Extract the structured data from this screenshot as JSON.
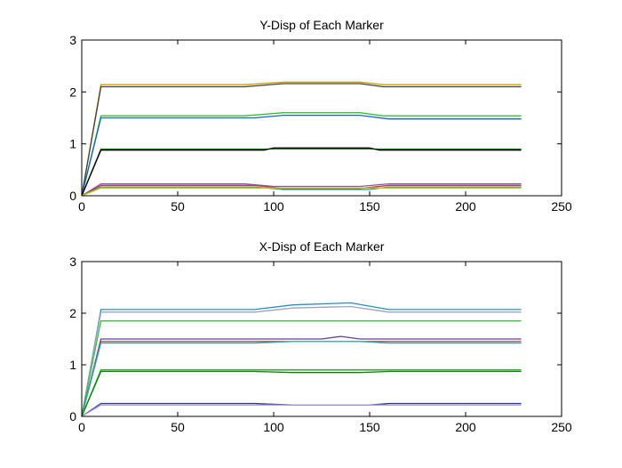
{
  "chart_data": [
    {
      "type": "line",
      "title": "Y-Disp of Each Marker",
      "xlabel": "",
      "ylabel": "",
      "xlim": [
        0,
        250
      ],
      "ylim": [
        0,
        3
      ],
      "xticks": [
        0,
        50,
        100,
        150,
        200,
        250
      ],
      "yticks": [
        0,
        1,
        2,
        3
      ],
      "grid": false,
      "series": [
        {
          "color": "#c8a000",
          "points": [
            [
              0,
              0
            ],
            [
              10,
              2.14
            ],
            [
              85,
              2.14
            ],
            [
              105,
              2.19
            ],
            [
              145,
              2.19
            ],
            [
              157,
              2.14
            ],
            [
              229,
              2.14
            ]
          ]
        },
        {
          "color": "#404040",
          "points": [
            [
              0,
              0
            ],
            [
              10,
              2.1
            ],
            [
              85,
              2.1
            ],
            [
              105,
              2.16
            ],
            [
              145,
              2.16
            ],
            [
              157,
              2.1
            ],
            [
              229,
              2.1
            ]
          ]
        },
        {
          "color": "#30c030",
          "points": [
            [
              0,
              0
            ],
            [
              10,
              1.54
            ],
            [
              85,
              1.54
            ],
            [
              105,
              1.6
            ],
            [
              145,
              1.6
            ],
            [
              157,
              1.54
            ],
            [
              229,
              1.54
            ]
          ]
        },
        {
          "color": "#2060c0",
          "points": [
            [
              0,
              0
            ],
            [
              10,
              1.5
            ],
            [
              90,
              1.5
            ],
            [
              105,
              1.55
            ],
            [
              145,
              1.55
            ],
            [
              160,
              1.48
            ],
            [
              229,
              1.48
            ]
          ]
        },
        {
          "color": "#208020",
          "points": [
            [
              0,
              0
            ],
            [
              10,
              0.9
            ],
            [
              229,
              0.9
            ]
          ]
        },
        {
          "color": "#000000",
          "points": [
            [
              0,
              0
            ],
            [
              10,
              0.88
            ],
            [
              95,
              0.88
            ],
            [
              100,
              0.92
            ],
            [
              150,
              0.92
            ],
            [
              155,
              0.88
            ],
            [
              229,
              0.88
            ]
          ]
        },
        {
          "color": "#9050c0",
          "points": [
            [
              0,
              0
            ],
            [
              10,
              0.23
            ],
            [
              85,
              0.23
            ],
            [
              100,
              0.18
            ],
            [
              145,
              0.18
            ],
            [
              160,
              0.23
            ],
            [
              229,
              0.23
            ]
          ]
        },
        {
          "color": "#c04040",
          "points": [
            [
              0,
              0
            ],
            [
              10,
              0.2
            ],
            [
              90,
              0.2
            ],
            [
              105,
              0.14
            ],
            [
              145,
              0.14
            ],
            [
              160,
              0.2
            ],
            [
              229,
              0.2
            ]
          ]
        },
        {
          "color": "#20a0a0",
          "points": [
            [
              0,
              0
            ],
            [
              10,
              0.17
            ],
            [
              90,
              0.17
            ],
            [
              105,
              0.12
            ],
            [
              150,
              0.12
            ],
            [
              160,
              0.17
            ],
            [
              229,
              0.17
            ]
          ]
        },
        {
          "color": "#c0c000",
          "points": [
            [
              0,
              0
            ],
            [
              10,
              0.15
            ],
            [
              229,
              0.15
            ]
          ]
        }
      ]
    },
    {
      "type": "line",
      "title": "X-Disp of Each Marker",
      "xlabel": "",
      "ylabel": "",
      "xlim": [
        0,
        250
      ],
      "ylim": [
        0,
        3
      ],
      "xticks": [
        0,
        50,
        100,
        150,
        200,
        250
      ],
      "yticks": [
        0,
        1,
        2,
        3
      ],
      "grid": false,
      "series": [
        {
          "color": "#2090c0",
          "points": [
            [
              0,
              0
            ],
            [
              10,
              2.07
            ],
            [
              90,
              2.07
            ],
            [
              110,
              2.16
            ],
            [
              140,
              2.2
            ],
            [
              160,
              2.07
            ],
            [
              229,
              2.07
            ]
          ]
        },
        {
          "color": "#a0a0c0",
          "points": [
            [
              0,
              0
            ],
            [
              10,
              2.02
            ],
            [
              90,
              2.02
            ],
            [
              110,
              2.1
            ],
            [
              140,
              2.13
            ],
            [
              160,
              2.02
            ],
            [
              229,
              2.02
            ]
          ]
        },
        {
          "color": "#40c040",
          "points": [
            [
              0,
              0
            ],
            [
              10,
              1.85
            ],
            [
              229,
              1.85
            ]
          ]
        },
        {
          "color": "#6040a0",
          "points": [
            [
              0,
              0
            ],
            [
              10,
              1.5
            ],
            [
              125,
              1.5
            ],
            [
              135,
              1.55
            ],
            [
              145,
              1.5
            ],
            [
              229,
              1.5
            ]
          ]
        },
        {
          "color": "#c03030",
          "points": [
            [
              0,
              0
            ],
            [
              10,
              1.45
            ],
            [
              229,
              1.45
            ]
          ]
        },
        {
          "color": "#30b0b0",
          "points": [
            [
              0,
              0
            ],
            [
              10,
              1.42
            ],
            [
              90,
              1.42
            ],
            [
              110,
              1.45
            ],
            [
              145,
              1.45
            ],
            [
              160,
              1.42
            ],
            [
              229,
              1.42
            ]
          ]
        },
        {
          "color": "#20a020",
          "points": [
            [
              0,
              0
            ],
            [
              10,
              0.9
            ],
            [
              229,
              0.9
            ]
          ]
        },
        {
          "color": "#108010",
          "points": [
            [
              0,
              0
            ],
            [
              10,
              0.87
            ],
            [
              90,
              0.87
            ],
            [
              110,
              0.85
            ],
            [
              145,
              0.85
            ],
            [
              160,
              0.87
            ],
            [
              229,
              0.87
            ]
          ]
        },
        {
          "color": "#3030c0",
          "points": [
            [
              0,
              0
            ],
            [
              10,
              0.25
            ],
            [
              90,
              0.25
            ],
            [
              110,
              0.22
            ],
            [
              150,
              0.22
            ],
            [
              160,
              0.25
            ],
            [
              229,
              0.25
            ]
          ]
        },
        {
          "color": "#a0a0c0",
          "points": [
            [
              0,
              0
            ],
            [
              10,
              0.22
            ],
            [
              229,
              0.22
            ]
          ]
        }
      ]
    }
  ]
}
